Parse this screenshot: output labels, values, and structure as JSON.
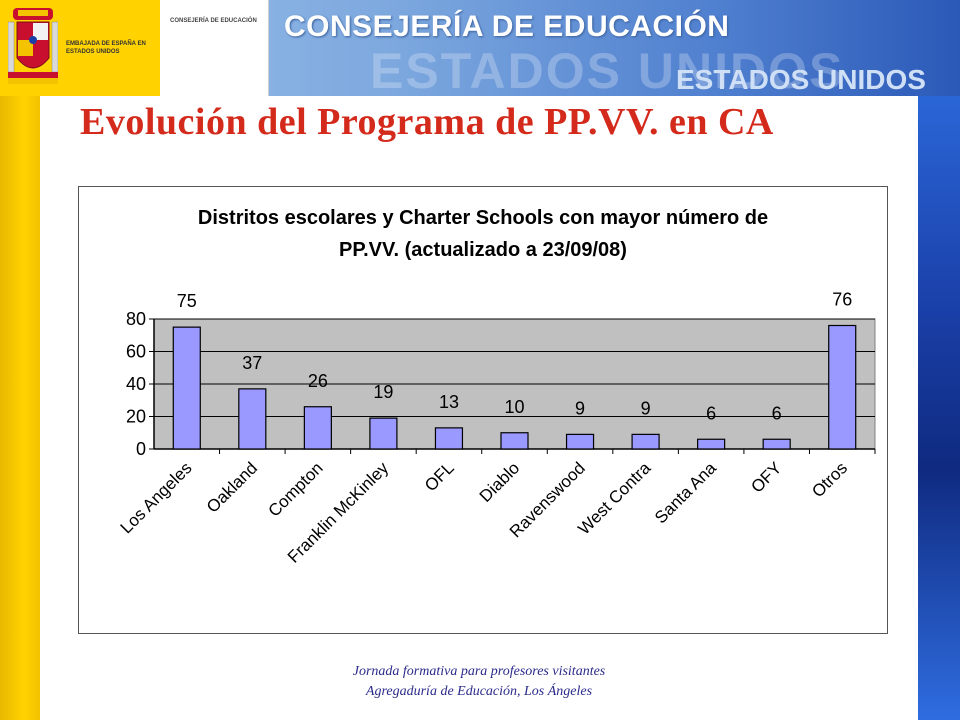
{
  "header": {
    "emblem_text": "EMBAJADA DE ESPAÑA EN ESTADOS UNIDOS",
    "small_label": "CONSEJERÍA DE EDUCACIÓN",
    "title": "CONSEJERÍA DE EDUCACIÓN",
    "watermark": "ESTADOS UNIDOS",
    "subtitle": "ESTADOS UNIDOS"
  },
  "slide": {
    "title": "Evolución del Programa de PP.VV. en CA"
  },
  "chart_data": {
    "type": "bar",
    "title_line1": "Distritos escolares y Charter Schools con mayor número de",
    "title_line2": "PP.VV. (actualizado a 23/09/08)",
    "categories": [
      "Los Angeles",
      "Oakland",
      "Compton",
      "Franklin McKinley",
      "OFL",
      "Diablo",
      "Ravenswood",
      "West Contra",
      "Santa Ana",
      "OFY",
      "Otros"
    ],
    "values": [
      75,
      37,
      26,
      19,
      13,
      10,
      9,
      9,
      6,
      6,
      76
    ],
    "value_labels": [
      "75",
      "37",
      "26",
      "19",
      "13",
      "10",
      "9",
      "9",
      "6",
      "6",
      "76"
    ],
    "yticks": [
      "0",
      "20",
      "40",
      "60",
      "80"
    ],
    "ylim": [
      0,
      80
    ],
    "grid": true,
    "bar_color": "#9999ff",
    "plot_background": "#c0c0c0"
  },
  "footer": {
    "line1": "Jornada formativa para profesores visitantes",
    "line2": "Agregaduría de Educación, Los Ángeles"
  },
  "colors": {
    "title_red": "#d42a1c",
    "footer_blue": "#2a2a8a"
  }
}
